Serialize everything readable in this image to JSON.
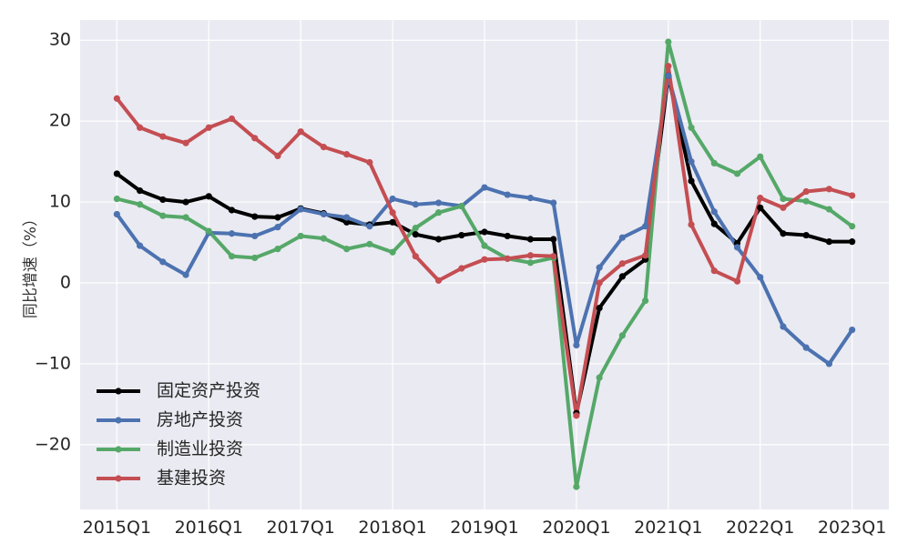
{
  "chart_data": {
    "type": "line",
    "title": "",
    "xlabel": "",
    "ylabel": "同比增速（%）",
    "x_tick_labels": [
      "2015Q1",
      "2016Q1",
      "2017Q1",
      "2018Q1",
      "2019Q1",
      "2020Q1",
      "2021Q1",
      "2022Q1",
      "2023Q1"
    ],
    "y_ticks": [
      -20,
      -10,
      0,
      10,
      20,
      30
    ],
    "ylim": [
      -28,
      32.5
    ],
    "xlim": [
      -1.6,
      33.6
    ],
    "grid": true,
    "legend_position": "lower-left",
    "background": "#eaeaf2",
    "x": [
      "2015Q1",
      "2015Q2",
      "2015Q3",
      "2015Q4",
      "2016Q1",
      "2016Q2",
      "2016Q3",
      "2016Q4",
      "2017Q1",
      "2017Q2",
      "2017Q3",
      "2017Q4",
      "2018Q1",
      "2018Q2",
      "2018Q3",
      "2018Q4",
      "2019Q1",
      "2019Q2",
      "2019Q3",
      "2019Q4",
      "2020Q1",
      "2020Q2",
      "2020Q3",
      "2020Q4",
      "2021Q1",
      "2021Q2",
      "2021Q3",
      "2021Q4",
      "2022Q1",
      "2022Q2",
      "2022Q3",
      "2022Q4",
      "2023Q1"
    ],
    "series": [
      {
        "name": "固定资产投资",
        "color": "#000000",
        "values": [
          13.5,
          11.4,
          10.3,
          10.0,
          10.7,
          9.0,
          8.2,
          8.1,
          9.2,
          8.6,
          7.5,
          7.2,
          7.5,
          6.0,
          5.4,
          5.9,
          6.3,
          5.8,
          5.4,
          5.4,
          -16.1,
          -3.1,
          0.8,
          2.9,
          25.6,
          12.6,
          7.3,
          4.9,
          9.3,
          6.1,
          5.9,
          5.1,
          5.1
        ]
      },
      {
        "name": "房地产投资",
        "color": "#4c72b0",
        "values": [
          8.5,
          4.6,
          2.6,
          1.0,
          6.2,
          6.1,
          5.8,
          6.9,
          9.1,
          8.5,
          8.1,
          7.0,
          10.4,
          9.7,
          9.9,
          9.5,
          11.8,
          10.9,
          10.5,
          9.9,
          -7.7,
          1.9,
          5.6,
          7.0,
          25.6,
          15.0,
          8.8,
          4.4,
          0.7,
          -5.4,
          -8.0,
          -10.0,
          -5.8
        ]
      },
      {
        "name": "制造业投资",
        "color": "#55a868",
        "values": [
          10.4,
          9.7,
          8.3,
          8.1,
          6.4,
          3.3,
          3.1,
          4.2,
          5.8,
          5.5,
          4.2,
          4.8,
          3.8,
          6.8,
          8.7,
          9.5,
          4.6,
          3.0,
          2.5,
          3.1,
          -25.2,
          -11.7,
          -6.5,
          -2.2,
          29.8,
          19.2,
          14.8,
          13.5,
          15.6,
          10.4,
          10.1,
          9.1,
          7.0
        ]
      },
      {
        "name": "基建投资",
        "color": "#c44e52",
        "values": [
          22.8,
          19.2,
          18.1,
          17.3,
          19.2,
          20.3,
          17.9,
          15.7,
          18.7,
          16.8,
          15.9,
          14.9,
          8.7,
          3.3,
          0.3,
          1.8,
          2.9,
          3.0,
          3.4,
          3.3,
          -16.4,
          0.0,
          2.4,
          3.4,
          26.8,
          7.2,
          1.5,
          0.2,
          10.5,
          9.3,
          11.3,
          11.6,
          10.8
        ]
      }
    ]
  }
}
